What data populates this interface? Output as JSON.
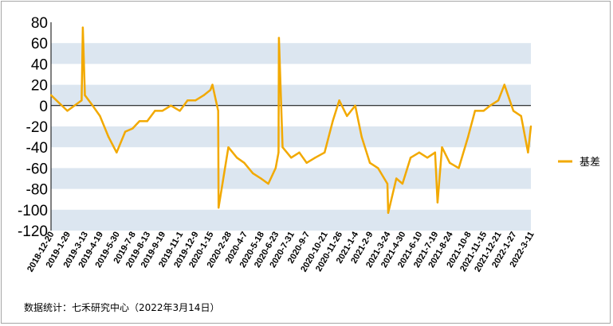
{
  "chart_data": {
    "type": "line",
    "title": "",
    "xlabel": "",
    "ylabel": "",
    "ylim": [
      -120,
      80
    ],
    "yticks": [
      80,
      60,
      40,
      20,
      0,
      -20,
      -40,
      -60,
      -80,
      -100,
      -120
    ],
    "grid": "alternating horizontal bands",
    "legend_position": "right",
    "colors": {
      "series": "#f2a900",
      "band": "#dce6f0",
      "zero_line": "#000000"
    },
    "x_tick_labels": [
      "2018-12-20",
      "2019-1-29",
      "2019-3-13",
      "2019-4-19",
      "2019-5-30",
      "2019-7-8",
      "2019-8-13",
      "2019-9-19",
      "2019-11-1",
      "2019-12-9",
      "2020-1-15",
      "2020-2-28",
      "2020-4-7",
      "2020-5-18",
      "2020-6-23",
      "2020-7-31",
      "2020-9-7",
      "2020-10-21",
      "2020-11-26",
      "2021-1-4",
      "2021-2-9",
      "2021-3-24",
      "2021-4-30",
      "2021-6-10",
      "2021-7-19",
      "2021-8-24",
      "2021-10-8",
      "2021-11-15",
      "2021-12-21",
      "2022-1-27",
      "2022-3-11"
    ],
    "series": [
      {
        "name": "基差",
        "x": [
          "2018-12-20",
          "2019-1-29",
          "2019-3-5",
          "2019-3-8",
          "2019-3-13",
          "2019-4-1",
          "2019-4-19",
          "2019-5-10",
          "2019-5-30",
          "2019-6-20",
          "2019-7-8",
          "2019-7-25",
          "2019-8-13",
          "2019-9-1",
          "2019-9-19",
          "2019-10-10",
          "2019-11-1",
          "2019-11-20",
          "2019-12-9",
          "2019-12-30",
          "2020-1-15",
          "2020-1-20",
          "2020-2-3",
          "2020-2-4",
          "2020-2-28",
          "2020-3-20",
          "2020-4-7",
          "2020-4-28",
          "2020-5-18",
          "2020-6-5",
          "2020-6-23",
          "2020-6-30",
          "2020-7-1",
          "2020-7-10",
          "2020-7-31",
          "2020-8-20",
          "2020-9-7",
          "2020-9-28",
          "2020-10-21",
          "2020-11-10",
          "2020-11-26",
          "2020-12-15",
          "2021-1-4",
          "2021-1-20",
          "2021-2-9",
          "2021-3-1",
          "2021-3-24",
          "2021-3-26",
          "2021-4-15",
          "2021-4-30",
          "2021-5-20",
          "2021-6-10",
          "2021-6-30",
          "2021-7-19",
          "2021-7-25",
          "2021-8-5",
          "2021-8-24",
          "2021-9-15",
          "2021-10-8",
          "2021-10-25",
          "2021-11-15",
          "2021-12-1",
          "2021-12-21",
          "2022-1-5",
          "2022-1-27",
          "2022-2-15",
          "2022-3-4",
          "2022-3-11"
        ],
        "values": [
          10,
          -5,
          5,
          75,
          10,
          0,
          -10,
          -30,
          -45,
          -25,
          -22,
          -15,
          -15,
          -5,
          -5,
          0,
          -5,
          5,
          5,
          10,
          15,
          20,
          -5,
          -98,
          -40,
          -50,
          -55,
          -65,
          -70,
          -75,
          -60,
          -45,
          65,
          -40,
          -50,
          -45,
          -55,
          -50,
          -45,
          -15,
          5,
          -10,
          0,
          -30,
          -55,
          -60,
          -75,
          -103,
          -70,
          -75,
          -50,
          -45,
          -50,
          -45,
          -93,
          -40,
          -55,
          -60,
          -30,
          -5,
          -5,
          0,
          5,
          20,
          -5,
          -10,
          -45,
          -20
        ]
      }
    ]
  },
  "legend": {
    "label": "基差"
  },
  "source_text": "数据统计：七禾研究中心（2022年3月14日）"
}
